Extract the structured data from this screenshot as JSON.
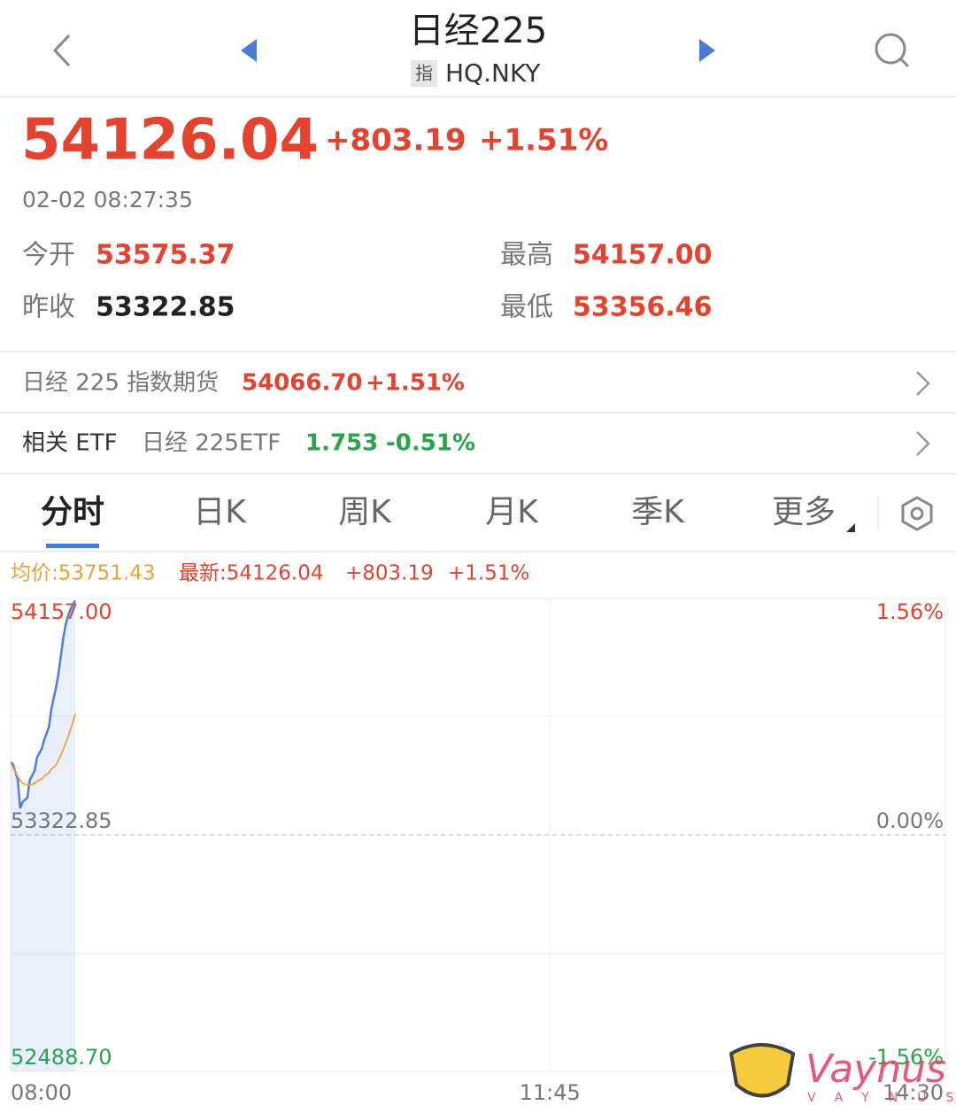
{
  "header": {
    "title": "日经225",
    "badge": "指",
    "code": "HQ.NKY"
  },
  "quote": {
    "price": "54126.04",
    "change": "+803.19",
    "change_pct": "+1.51%",
    "time": "02-02 08:27:35"
  },
  "stats": [
    {
      "label": "今开",
      "value": "53575.37"
    },
    {
      "label": "最高",
      "value": "54157.00"
    },
    {
      "label": "昨收",
      "value": "53322.85"
    },
    {
      "label": "最低",
      "value": "53356.46"
    }
  ],
  "futures": {
    "label": "日经 225 指数期货",
    "value": "54066.70",
    "change_pct": "+1.51%"
  },
  "etf": {
    "label": "相关 ETF",
    "name": "日经 225ETF",
    "value": "1.753",
    "change_pct": "-0.51%"
  },
  "tabs": [
    "分时",
    "日K",
    "周K",
    "月K",
    "季K",
    "更多"
  ],
  "chart_info": {
    "average": "均价:53751.43",
    "latest": "最新:54126.04",
    "change": "+803.19",
    "change_pct": "+1.51%"
  },
  "chart_data": {
    "type": "line",
    "x": [
      480,
      481,
      483,
      484,
      485,
      487,
      488,
      490,
      491,
      493,
      494,
      496,
      497,
      499,
      500,
      501,
      502,
      503,
      504,
      505,
      506,
      507
    ],
    "xlim": [
      480,
      870
    ],
    "xticks": [
      {
        "value": 480,
        "label": "08:00"
      },
      {
        "value": 705,
        "label": "11:45"
      },
      {
        "value": 870,
        "label": "14:30"
      }
    ],
    "ylim": [
      52488.7,
      54157
    ],
    "yticks": [
      {
        "value": 54157,
        "label": "54157.00"
      },
      {
        "value": 53322.85,
        "label": "53322.85"
      },
      {
        "value": 52488.7,
        "label": "52488.70"
      }
    ],
    "y2lim": [
      -1.56,
      1.56
    ],
    "y2ticks": [
      {
        "value": 1.56,
        "label": "1.56%"
      },
      {
        "value": 0,
        "label": "0.00%"
      },
      {
        "value": -1.56,
        "label": "-1.56%"
      }
    ],
    "grid": true,
    "series": [
      {
        "color": "#4f7fd6",
        "values": [
          53580,
          53573,
          53517,
          53417,
          53439,
          53455,
          53517,
          53549,
          53596,
          53627,
          53658,
          53705,
          53768,
          53846,
          53893,
          53956,
          54019,
          54066,
          54097,
          54119,
          54138,
          54150
        ]
      },
      {
        "color": "#f0a43a",
        "values": [
          53580,
          53560,
          53530,
          53515,
          53505,
          53500,
          53500,
          53505,
          53512,
          53520,
          53530,
          53542,
          53555,
          53570,
          53587,
          53605,
          53625,
          53647,
          53670,
          53695,
          53722,
          53751
        ]
      }
    ]
  },
  "watermark": {
    "brand": "Vaynus",
    "subbrand": "VAYNUS"
  }
}
